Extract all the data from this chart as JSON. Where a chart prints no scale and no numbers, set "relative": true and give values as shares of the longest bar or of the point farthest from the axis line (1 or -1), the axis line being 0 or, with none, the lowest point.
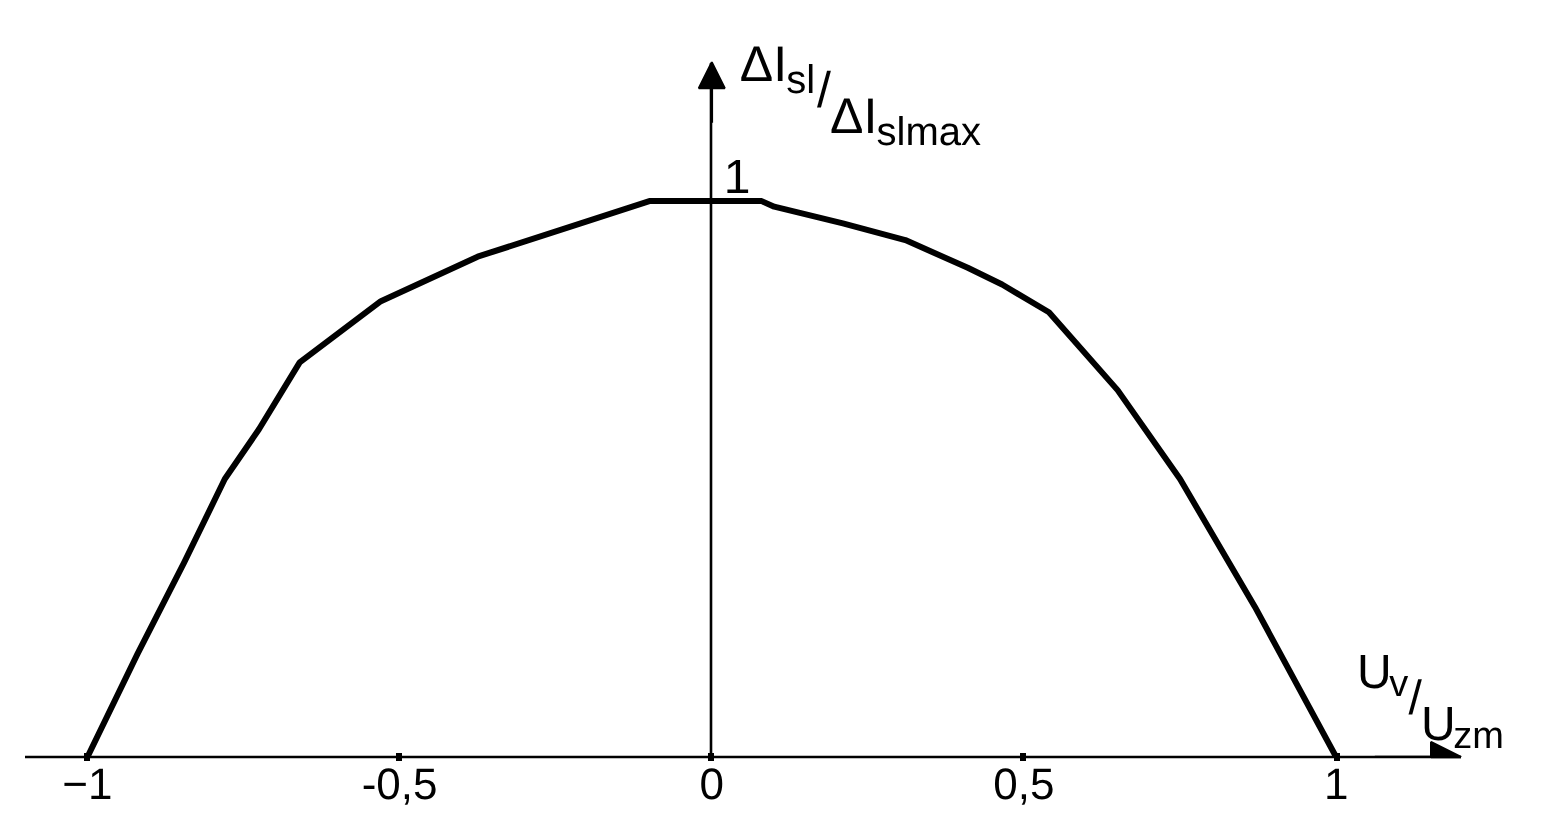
{
  "chart_data": {
    "type": "line",
    "relative": true,
    "xlabel": "U$_{v}$/U$_{zm}$",
    "ylabel": "ΔI$_{sl}$/ΔI$_{slmax}$",
    "x": [
      -1,
      -0.92,
      -0.845,
      -0.78,
      -0.725,
      -0.66,
      -0.53,
      -0.375,
      -0.21,
      -0.1,
      0.08,
      0.1,
      0.21,
      0.31,
      0.41,
      0.465,
      0.54,
      0.65,
      0.75,
      0.87,
      1.0
    ],
    "values": [
      0,
      0.185,
      0.35,
      0.5,
      0.59,
      0.71,
      0.82,
      0.9,
      0.96,
      1,
      1,
      0.99,
      0.96,
      0.93,
      0.88,
      0.85,
      0.8,
      0.66,
      0.5,
      0.27,
      0
    ],
    "color": "#000000",
    "xlim": [
      -1.1,
      1.2
    ],
    "xticks": [
      -1,
      {
        "value": -0.5,
        "label": "-0,5"
      },
      0,
      {
        "value": 0.5,
        "label": "0,5"
      },
      1
    ],
    "annotations": [
      {
        "text": "1",
        "x": 0,
        "y": 1
      }
    ]
  }
}
